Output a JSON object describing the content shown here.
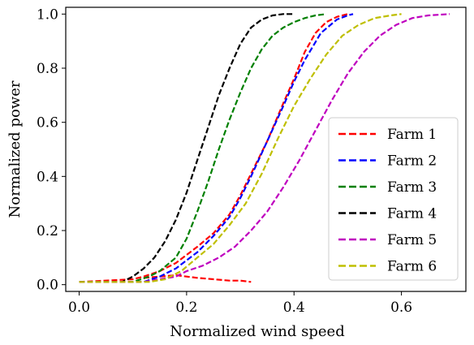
{
  "chart_data": {
    "type": "line",
    "xlabel": "Normalized wind speed",
    "ylabel": "Normalized power",
    "xlim": [
      -0.025,
      0.72
    ],
    "ylim": [
      -0.025,
      1.025
    ],
    "xticks": [
      0.0,
      0.2,
      0.4,
      0.6
    ],
    "yticks": [
      0.0,
      0.2,
      0.4,
      0.6,
      0.8,
      1.0
    ],
    "xtick_labels": [
      "0.0",
      "0.2",
      "0.4",
      "0.6"
    ],
    "ytick_labels": [
      "0.0",
      "0.2",
      "0.4",
      "0.6",
      "0.8",
      "1.0"
    ],
    "grid": false,
    "legend_position": "lower-right",
    "series": [
      {
        "name": "Farm 1",
        "color": "#ff0000",
        "x": [
          0.0,
          0.1,
          0.12,
          0.15,
          0.18,
          0.2,
          0.22,
          0.25,
          0.28,
          0.3,
          0.32,
          0.35,
          0.38,
          0.4,
          0.42,
          0.44,
          0.46,
          0.48,
          0.5
        ],
        "y": [
          0.01,
          0.02,
          0.03,
          0.05,
          0.08,
          0.11,
          0.14,
          0.19,
          0.26,
          0.33,
          0.41,
          0.53,
          0.67,
          0.76,
          0.86,
          0.93,
          0.97,
          0.99,
          1.0
        ],
        "tail_x": [
          0.12,
          0.15,
          0.18,
          0.2,
          0.22,
          0.25,
          0.28,
          0.3,
          0.32
        ],
        "tail_y": [
          0.025,
          0.03,
          0.035,
          0.03,
          0.025,
          0.02,
          0.015,
          0.015,
          0.01
        ]
      },
      {
        "name": "Farm 2",
        "color": "#0000ff",
        "x": [
          0.0,
          0.12,
          0.15,
          0.18,
          0.2,
          0.22,
          0.25,
          0.28,
          0.3,
          0.32,
          0.35,
          0.38,
          0.4,
          0.42,
          0.45,
          0.48,
          0.5,
          0.51
        ],
        "y": [
          0.01,
          0.01,
          0.03,
          0.06,
          0.09,
          0.12,
          0.18,
          0.25,
          0.32,
          0.4,
          0.53,
          0.66,
          0.75,
          0.83,
          0.93,
          0.98,
          0.995,
          1.0
        ]
      },
      {
        "name": "Farm 3",
        "color": "#008000",
        "x": [
          0.0,
          0.1,
          0.13,
          0.15,
          0.18,
          0.2,
          0.22,
          0.24,
          0.26,
          0.28,
          0.3,
          0.32,
          0.34,
          0.36,
          0.38,
          0.4,
          0.42,
          0.44,
          0.46
        ],
        "y": [
          0.01,
          0.01,
          0.03,
          0.05,
          0.1,
          0.17,
          0.27,
          0.38,
          0.5,
          0.61,
          0.71,
          0.8,
          0.87,
          0.92,
          0.95,
          0.97,
          0.985,
          0.995,
          1.0
        ]
      },
      {
        "name": "Farm 4",
        "color": "#000000",
        "x": [
          0.0,
          0.08,
          0.1,
          0.12,
          0.14,
          0.16,
          0.18,
          0.2,
          0.22,
          0.24,
          0.26,
          0.28,
          0.3,
          0.32,
          0.34,
          0.36,
          0.38,
          0.4
        ],
        "y": [
          0.01,
          0.01,
          0.03,
          0.06,
          0.1,
          0.16,
          0.24,
          0.34,
          0.46,
          0.58,
          0.7,
          0.8,
          0.89,
          0.95,
          0.98,
          0.995,
          1.0,
          1.0
        ]
      },
      {
        "name": "Farm 5",
        "color": "#bf00bf",
        "x": [
          0.0,
          0.12,
          0.15,
          0.18,
          0.2,
          0.23,
          0.26,
          0.29,
          0.32,
          0.35,
          0.38,
          0.41,
          0.44,
          0.47,
          0.5,
          0.53,
          0.56,
          0.59,
          0.62,
          0.65,
          0.69
        ],
        "y": [
          0.01,
          0.01,
          0.02,
          0.03,
          0.05,
          0.07,
          0.1,
          0.14,
          0.2,
          0.27,
          0.36,
          0.46,
          0.57,
          0.68,
          0.78,
          0.86,
          0.92,
          0.96,
          0.985,
          0.995,
          1.0
        ]
      },
      {
        "name": "Farm 6",
        "color": "#bfbf00",
        "x": [
          0.0,
          0.13,
          0.16,
          0.19,
          0.22,
          0.25,
          0.28,
          0.31,
          0.34,
          0.37,
          0.4,
          0.43,
          0.46,
          0.49,
          0.52,
          0.55,
          0.58,
          0.6
        ],
        "y": [
          0.01,
          0.01,
          0.02,
          0.05,
          0.1,
          0.15,
          0.22,
          0.3,
          0.41,
          0.54,
          0.66,
          0.76,
          0.85,
          0.92,
          0.96,
          0.985,
          0.995,
          1.0
        ]
      }
    ]
  }
}
